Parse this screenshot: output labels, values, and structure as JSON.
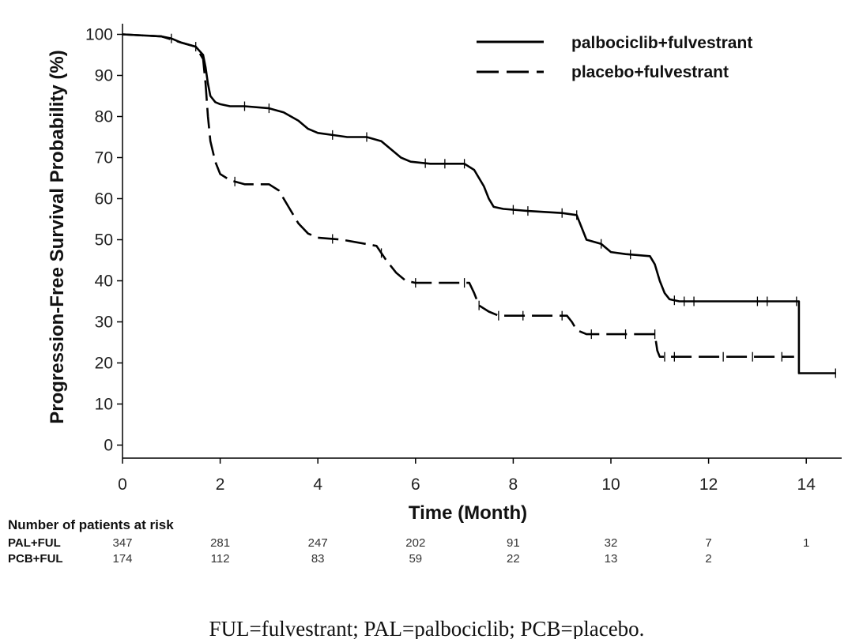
{
  "chart_data": {
    "type": "line",
    "title": "",
    "xlabel": "Time (Month)",
    "ylabel": "Progression-Free Survival Probability (%)",
    "xlim": [
      0,
      14.8
    ],
    "ylim": [
      -3,
      103
    ],
    "x_ticks": [
      "0",
      "2",
      "4",
      "6",
      "8",
      "10",
      "12",
      "14"
    ],
    "y_ticks": [
      "0",
      "10",
      "20",
      "30",
      "40",
      "50",
      "60",
      "70",
      "80",
      "90",
      "100"
    ],
    "grid": false,
    "legend_position": "top-right",
    "series": [
      {
        "name": "palbociclib+fulvestrant",
        "style": "solid",
        "points": [
          [
            0,
            100
          ],
          [
            0.8,
            99.5
          ],
          [
            1.0,
            99
          ],
          [
            1.2,
            98
          ],
          [
            1.5,
            97
          ],
          [
            1.65,
            95
          ],
          [
            1.7,
            92
          ],
          [
            1.75,
            88
          ],
          [
            1.8,
            85
          ],
          [
            1.9,
            83.5
          ],
          [
            2.0,
            83
          ],
          [
            2.2,
            82.5
          ],
          [
            2.5,
            82.5
          ],
          [
            3.0,
            82
          ],
          [
            3.3,
            81
          ],
          [
            3.6,
            79
          ],
          [
            3.8,
            77
          ],
          [
            4.0,
            76
          ],
          [
            4.3,
            75.5
          ],
          [
            4.6,
            75
          ],
          [
            5.0,
            75
          ],
          [
            5.3,
            74
          ],
          [
            5.5,
            72
          ],
          [
            5.7,
            70
          ],
          [
            5.9,
            69
          ],
          [
            6.3,
            68.5
          ],
          [
            7.0,
            68.5
          ],
          [
            7.2,
            67
          ],
          [
            7.4,
            63
          ],
          [
            7.5,
            60
          ],
          [
            7.6,
            58
          ],
          [
            7.8,
            57.5
          ],
          [
            8.3,
            57
          ],
          [
            9.0,
            56.5
          ],
          [
            9.3,
            56
          ],
          [
            9.4,
            53
          ],
          [
            9.5,
            50
          ],
          [
            9.8,
            49
          ],
          [
            10.0,
            47
          ],
          [
            10.3,
            46.5
          ],
          [
            10.8,
            46
          ],
          [
            10.9,
            44
          ],
          [
            11.0,
            40
          ],
          [
            11.1,
            37
          ],
          [
            11.2,
            35.5
          ],
          [
            11.4,
            35
          ],
          [
            13.0,
            35
          ],
          [
            13.85,
            35
          ],
          [
            13.85,
            17.5
          ],
          [
            14.6,
            17.5
          ]
        ],
        "censor_x": [
          1.0,
          1.5,
          2.5,
          3.0,
          4.3,
          5.0,
          6.2,
          6.6,
          7.0,
          8.0,
          8.3,
          9.0,
          9.3,
          9.8,
          10.4,
          11.3,
          11.5,
          11.7,
          13.0,
          13.2,
          13.8,
          14.6
        ]
      },
      {
        "name": "placebo+fulvestrant",
        "style": "dashed",
        "points": [
          [
            0,
            100
          ],
          [
            0.8,
            99.5
          ],
          [
            1.2,
            98
          ],
          [
            1.5,
            97
          ],
          [
            1.65,
            94
          ],
          [
            1.7,
            88
          ],
          [
            1.75,
            80
          ],
          [
            1.8,
            74
          ],
          [
            1.9,
            69
          ],
          [
            2.0,
            66
          ],
          [
            2.2,
            64.5
          ],
          [
            2.5,
            63.5
          ],
          [
            3.0,
            63.5
          ],
          [
            3.2,
            62
          ],
          [
            3.4,
            58
          ],
          [
            3.6,
            54
          ],
          [
            3.8,
            51.5
          ],
          [
            4.0,
            50.5
          ],
          [
            4.5,
            50
          ],
          [
            5.2,
            48.5
          ],
          [
            5.4,
            45
          ],
          [
            5.6,
            42
          ],
          [
            5.8,
            40
          ],
          [
            6.0,
            39.5
          ],
          [
            7.1,
            39.5
          ],
          [
            7.2,
            37
          ],
          [
            7.3,
            34
          ],
          [
            7.5,
            32.5
          ],
          [
            7.7,
            31.5
          ],
          [
            9.1,
            31.5
          ],
          [
            9.2,
            30
          ],
          [
            9.3,
            28
          ],
          [
            9.5,
            27
          ],
          [
            10.9,
            27
          ],
          [
            10.95,
            23
          ],
          [
            11.0,
            21.5
          ],
          [
            13.75,
            21.5
          ]
        ],
        "censor_x": [
          2.3,
          4.3,
          5.3,
          6.0,
          7.0,
          7.3,
          7.7,
          8.2,
          9.0,
          9.6,
          10.3,
          10.9,
          11.1,
          11.3,
          12.3,
          12.9,
          13.5
        ]
      }
    ]
  },
  "legend": [
    {
      "label": "palbociclib+fulvestrant",
      "style": "solid"
    },
    {
      "label": "placebo+fulvestrant",
      "style": "dashed"
    }
  ],
  "risk_table": {
    "title": "Number of patients at risk",
    "rows": [
      {
        "label": "PAL+FUL",
        "values": [
          "347",
          "281",
          "247",
          "202",
          "91",
          "32",
          "7",
          "1"
        ]
      },
      {
        "label": "PCB+FUL",
        "values": [
          "174",
          "112",
          "83",
          "59",
          "22",
          "13",
          "2",
          ""
        ]
      }
    ]
  },
  "footnote": "FUL=fulvestrant; PAL=palbociclib; PCB=placebo."
}
